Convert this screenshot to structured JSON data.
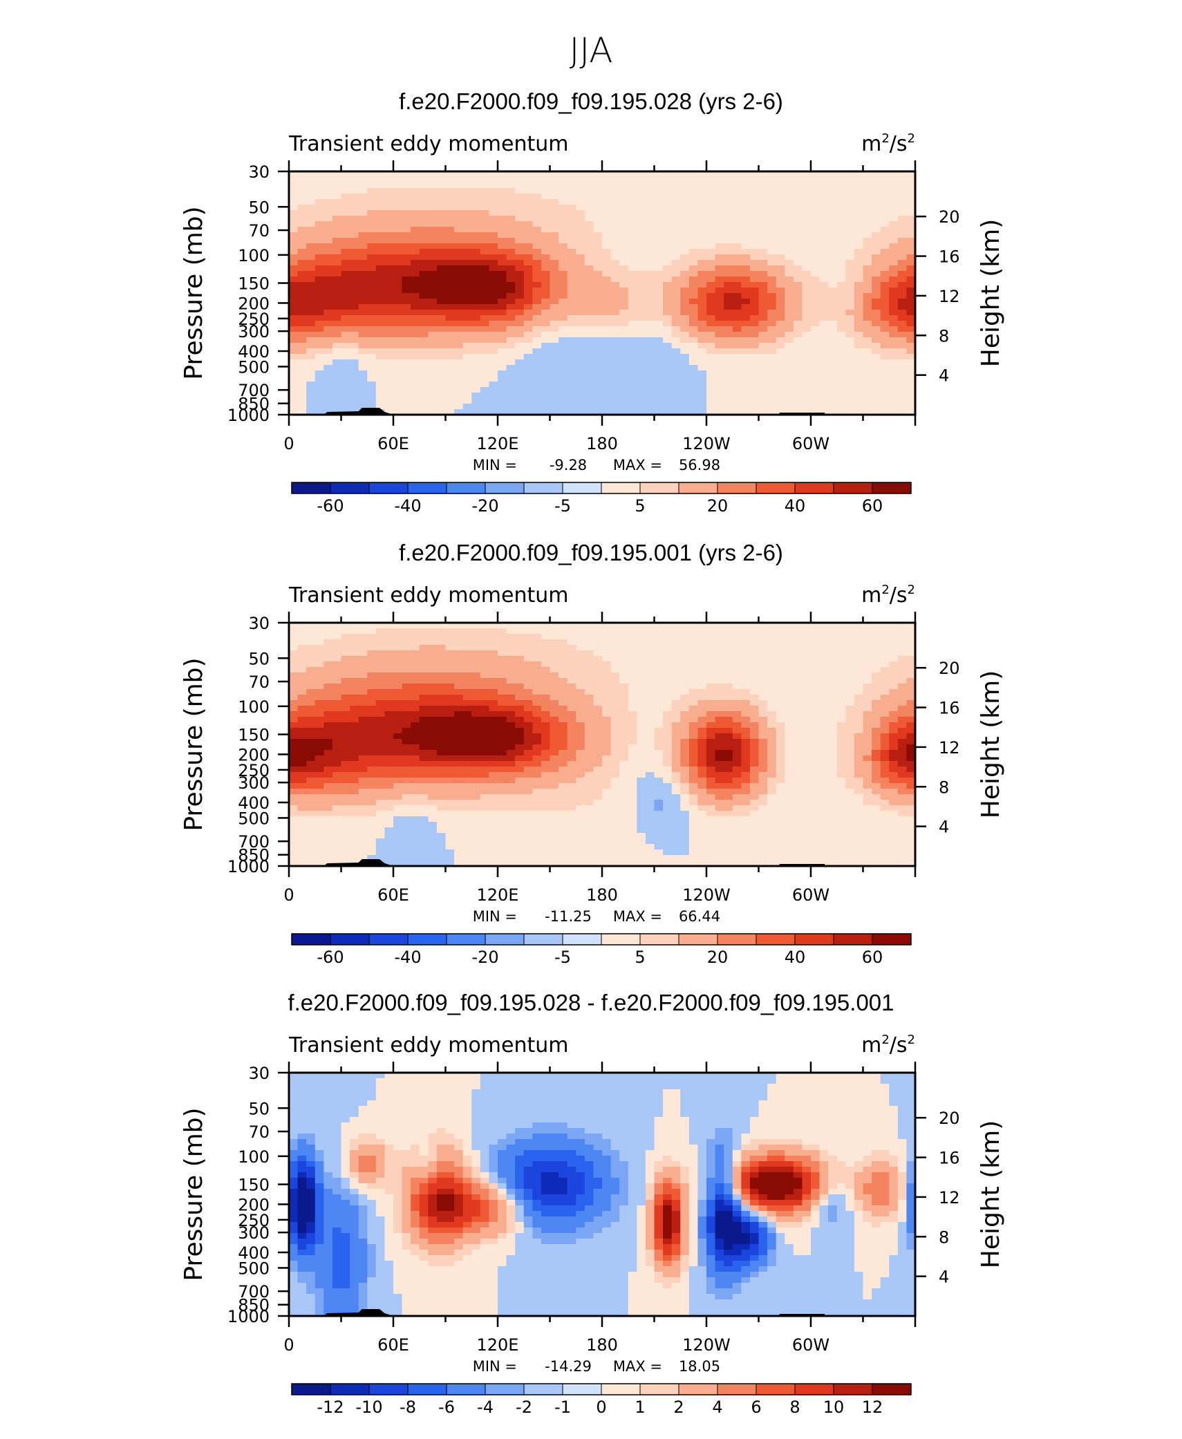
{
  "title": "JJA",
  "colors": {
    "neg": [
      "#0a1a8c",
      "#0e2ab8",
      "#1b45dc",
      "#2a63ee",
      "#4d86f2",
      "#7aa6f4",
      "#a8c6f6",
      "#d0e3fb"
    ],
    "pos": [
      "#fde8d8",
      "#fcd2bd",
      "#f8ad8f",
      "#f3845f",
      "#ef5a35",
      "#e0391f",
      "#b81f10",
      "#8a0a04"
    ]
  },
  "chart_data": [
    {
      "type": "heatmap",
      "title": "f.e20.F2000.f09_f09.195.028 (yrs 2-6)",
      "left_label": "Transient eddy momentum",
      "units_base": "m",
      "units_sup1": "2",
      "units_mid": "/s",
      "units_sup2": "2",
      "ylabel": "Pressure (mb)",
      "y2label": "Height (km)",
      "xticks": [
        "0",
        "60E",
        "120E",
        "180",
        "120W",
        "60W"
      ],
      "yticks": [
        "30",
        "50",
        "70",
        "100",
        "150",
        "200",
        "250",
        "300",
        "400",
        "500",
        "700",
        "850",
        "1000"
      ],
      "y2ticks": [
        "20",
        "16",
        "12",
        "8",
        "4"
      ],
      "min_label": "MIN =",
      "min_value": "-9.28",
      "max_label": "MAX =",
      "max_value": "56.98",
      "colorbar_labels": [
        "-60",
        "-40",
        "-20",
        "-5",
        "5",
        "20",
        "40",
        "60"
      ],
      "features": [
        {
          "lon": 75,
          "p": 150,
          "amp": 40,
          "dlon": 45,
          "dlogp": 0.22
        },
        {
          "lon": 115,
          "p": 160,
          "amp": 45,
          "dlon": 28,
          "dlogp": 0.16
        },
        {
          "lon": 25,
          "p": 180,
          "amp": 28,
          "dlon": 30,
          "dlogp": 0.2
        },
        {
          "lon": 255,
          "p": 200,
          "amp": 55,
          "dlon": 22,
          "dlogp": 0.16
        },
        {
          "lon": 355,
          "p": 210,
          "amp": 30,
          "dlon": 20,
          "dlogp": 0.15
        },
        {
          "lon": 185,
          "p": 210,
          "amp": 14,
          "dlon": 18,
          "dlogp": 0.15
        },
        {
          "lon": 100,
          "p": 60,
          "amp": 6,
          "dlon": 90,
          "dlogp": 0.25
        },
        {
          "lon": 30,
          "p": 420,
          "amp": -7,
          "dlon": 12,
          "dlogp": 0.15
        },
        {
          "lon": 165,
          "p": 350,
          "amp": -5,
          "dlon": 25,
          "dlogp": 0.3
        },
        {
          "lon": 220,
          "p": 400,
          "amp": -6,
          "dlon": 40,
          "dlogp": 0.3
        },
        {
          "lon": 325,
          "p": 170,
          "amp": -5,
          "dlon": 8,
          "dlogp": 0.1
        },
        {
          "lon": 235,
          "p": 600,
          "amp": 4,
          "dlon": 45,
          "dlogp": 0.2
        }
      ]
    },
    {
      "type": "heatmap",
      "title": "f.e20.F2000.f09_f09.195.001 (yrs 2-6)",
      "left_label": "Transient eddy momentum",
      "units_base": "m",
      "units_sup1": "2",
      "units_mid": "/s",
      "units_sup2": "2",
      "ylabel": "Pressure (mb)",
      "y2label": "Height (km)",
      "xticks": [
        "0",
        "60E",
        "120E",
        "180",
        "120W",
        "60W"
      ],
      "yticks": [
        "30",
        "50",
        "70",
        "100",
        "150",
        "200",
        "250",
        "300",
        "400",
        "500",
        "700",
        "850",
        "1000"
      ],
      "y2ticks": [
        "20",
        "16",
        "12",
        "8",
        "4"
      ],
      "min_label": "MIN =",
      "min_value": "-11.25",
      "max_label": "MAX =",
      "max_value": "66.44",
      "colorbar_labels": [
        "-60",
        "-40",
        "-20",
        "-5",
        "5",
        "20",
        "40",
        "60"
      ],
      "features": [
        {
          "lon": 75,
          "p": 140,
          "amp": 42,
          "dlon": 48,
          "dlogp": 0.24
        },
        {
          "lon": 118,
          "p": 160,
          "amp": 45,
          "dlon": 32,
          "dlogp": 0.15
        },
        {
          "lon": 20,
          "p": 190,
          "amp": 30,
          "dlon": 28,
          "dlogp": 0.2
        },
        {
          "lon": 250,
          "p": 200,
          "amp": 62,
          "dlon": 16,
          "dlogp": 0.18
        },
        {
          "lon": 355,
          "p": 210,
          "amp": 32,
          "dlon": 18,
          "dlogp": 0.15
        },
        {
          "lon": 100,
          "p": 60,
          "amp": 7,
          "dlon": 85,
          "dlogp": 0.25
        },
        {
          "lon": 215,
          "p": 380,
          "amp": -8,
          "dlon": 12,
          "dlogp": 0.15
        },
        {
          "lon": 330,
          "p": 180,
          "amp": -6,
          "dlon": 8,
          "dlogp": 0.12
        },
        {
          "lon": 70,
          "p": 600,
          "amp": -6,
          "dlon": 10,
          "dlogp": 0.15
        },
        {
          "lon": 170,
          "p": 400,
          "amp": 4,
          "dlon": 30,
          "dlogp": 0.25
        }
      ]
    },
    {
      "type": "heatmap",
      "title": "f.e20.F2000.f09_f09.195.028 - f.e20.F2000.f09_f09.195.001",
      "left_label": "Transient eddy momentum",
      "units_base": "m",
      "units_sup1": "2",
      "units_mid": "/s",
      "units_sup2": "2",
      "ylabel": "Pressure (mb)",
      "y2label": "Height (km)",
      "xticks": [
        "0",
        "60E",
        "120E",
        "180",
        "120W",
        "60W"
      ],
      "yticks": [
        "30",
        "50",
        "70",
        "100",
        "150",
        "200",
        "250",
        "300",
        "400",
        "500",
        "700",
        "850",
        "1000"
      ],
      "y2ticks": [
        "20",
        "16",
        "12",
        "8",
        "4"
      ],
      "min_label": "MIN =",
      "min_value": "-14.29",
      "max_label": "MAX =",
      "max_value": "18.05",
      "colorbar_labels": [
        "-12",
        "-10",
        "-8",
        "-6",
        "-4",
        "-2",
        "-1",
        "0",
        "1",
        "2",
        "4",
        "6",
        "8",
        "10",
        "12"
      ],
      "features": [
        {
          "lon": 8,
          "p": 200,
          "amp": -14,
          "dlon": 6,
          "dlogp": 0.2
        },
        {
          "lon": 85,
          "p": 180,
          "amp": 10,
          "dlon": 12,
          "dlogp": 0.2
        },
        {
          "lon": 110,
          "p": 210,
          "amp": 8,
          "dlon": 18,
          "dlogp": 0.12
        },
        {
          "lon": 150,
          "p": 150,
          "amp": -9,
          "dlon": 22,
          "dlogp": 0.18
        },
        {
          "lon": 218,
          "p": 260,
          "amp": 14,
          "dlon": 6,
          "dlogp": 0.18
        },
        {
          "lon": 250,
          "p": 230,
          "amp": -12,
          "dlon": 7,
          "dlogp": 0.25
        },
        {
          "lon": 280,
          "p": 150,
          "amp": 16,
          "dlon": 20,
          "dlogp": 0.12
        },
        {
          "lon": 45,
          "p": 110,
          "amp": 5,
          "dlon": 8,
          "dlogp": 0.1
        },
        {
          "lon": 80,
          "p": 120,
          "amp": -4,
          "dlon": 6,
          "dlogp": 0.1
        },
        {
          "lon": 340,
          "p": 160,
          "amp": 6,
          "dlon": 8,
          "dlogp": 0.12
        },
        {
          "lon": 30,
          "p": 450,
          "amp": -5,
          "dlon": 10,
          "dlogp": 0.3
        },
        {
          "lon": 265,
          "p": 320,
          "amp": -9,
          "dlon": 8,
          "dlogp": 0.12
        },
        {
          "lon": 310,
          "p": 180,
          "amp": -4,
          "dlon": 8,
          "dlogp": 0.12
        }
      ]
    }
  ]
}
